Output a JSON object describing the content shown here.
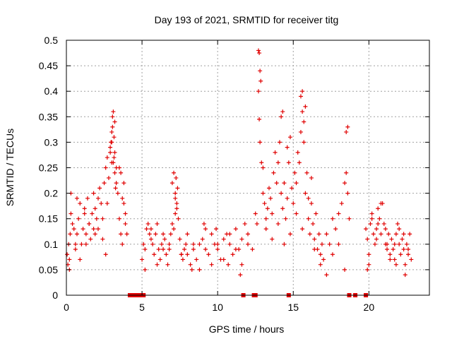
{
  "chart_data": {
    "type": "scatter",
    "title": "Day 193 of 2021, SRMTID for receiver titg",
    "xlabel": "GPS time / hours",
    "ylabel": "SRMTID / TECUs",
    "xlim": [
      0,
      24
    ],
    "ylim": [
      0,
      0.5
    ],
    "x_ticks": [
      0,
      5,
      10,
      15,
      20
    ],
    "x_tick_labels": [
      "0",
      "5",
      "10",
      "15",
      "20"
    ],
    "y_ticks": [
      0,
      0.05,
      0.1,
      0.15,
      0.2,
      0.25,
      0.3,
      0.35,
      0.4,
      0.45,
      0.5
    ],
    "y_tick_labels": [
      "0",
      "0.05",
      "0.1",
      "0.15",
      "0.2",
      "0.25",
      "0.3",
      "0.35",
      "0.4",
      "0.45",
      "0.5"
    ],
    "grid": true,
    "marker": "+",
    "colors": {
      "series": "#e00000",
      "grid": "#a0a0a0",
      "axes": "#000000"
    },
    "series": [
      {
        "x": [
          0.05,
          0.1,
          0.15,
          0.2,
          0.25,
          0.3,
          0.4,
          0.5,
          0.6,
          0.7,
          0.8,
          0.9,
          1.0,
          1.1,
          1.2,
          1.3,
          1.4,
          1.5,
          1.6,
          1.7,
          1.8,
          1.9,
          2.0,
          2.1,
          2.2,
          2.3,
          2.4,
          2.5,
          2.6,
          2.7,
          2.8,
          2.9,
          3.0,
          3.05,
          3.1,
          3.15,
          3.2,
          3.3,
          3.4,
          3.5,
          3.6,
          3.7,
          3.8,
          3.9,
          4.0,
          0.3,
          0.6,
          0.9,
          1.2,
          1.5,
          1.8,
          2.1,
          2.4,
          2.7,
          3.0,
          3.3,
          3.6,
          3.9,
          0.2,
          0.7,
          1.3,
          1.9,
          2.6,
          3.2,
          3.8,
          2.9,
          3.0,
          3.1,
          3.2,
          2.95,
          3.05,
          3.15,
          3.25,
          3.5,
          3.7
        ],
        "y": [
          0.08,
          0.06,
          0.1,
          0.07,
          0.12,
          0.16,
          0.14,
          0.13,
          0.1,
          0.12,
          0.15,
          0.18,
          0.1,
          0.13,
          0.16,
          0.12,
          0.19,
          0.14,
          0.11,
          0.16,
          0.13,
          0.17,
          0.15,
          0.19,
          0.21,
          0.18,
          0.15,
          0.22,
          0.25,
          0.27,
          0.23,
          0.28,
          0.3,
          0.33,
          0.36,
          0.31,
          0.28,
          0.25,
          0.2,
          0.15,
          0.12,
          0.1,
          0.18,
          0.14,
          0.12,
          0.2,
          0.09,
          0.07,
          0.17,
          0.14,
          0.2,
          0.13,
          0.11,
          0.18,
          0.26,
          0.22,
          0.24,
          0.16,
          0.05,
          0.19,
          0.1,
          0.12,
          0.08,
          0.34,
          0.22,
          0.29,
          0.32,
          0.26,
          0.24,
          0.3,
          0.35,
          0.27,
          0.21,
          0.25,
          0.19
        ]
      },
      {
        "x": [
          5.0,
          5.1,
          5.2,
          5.3,
          5.4,
          5.5,
          5.6,
          5.7,
          5.8,
          5.9,
          6.0,
          6.1,
          6.2,
          6.3,
          6.4,
          6.5,
          6.6,
          6.7,
          6.8,
          6.9,
          7.0,
          7.1,
          7.2,
          7.3,
          7.4,
          7.5,
          7.6,
          7.7,
          7.8,
          7.9,
          8.0,
          8.2,
          8.4,
          8.6,
          8.8,
          9.0,
          9.2,
          9.4,
          9.6,
          9.8,
          10.0,
          10.2,
          10.4,
          10.6,
          10.8,
          11.0,
          11.2,
          11.4,
          11.6,
          11.8,
          12.0,
          5.2,
          5.6,
          6.0,
          6.4,
          6.8,
          7.2,
          7.6,
          8.0,
          8.4,
          8.8,
          9.2,
          9.6,
          10.0,
          10.4,
          10.8,
          11.2,
          11.6,
          12.0,
          7.0,
          7.1,
          7.2,
          7.25,
          7.3,
          7.35,
          8.3,
          9.1,
          9.9,
          10.7,
          11.5,
          12.3,
          12.5,
          12.6
        ],
        "y": [
          0.07,
          0.1,
          0.09,
          0.13,
          0.14,
          0.12,
          0.11,
          0.1,
          0.08,
          0.12,
          0.14,
          0.09,
          0.07,
          0.1,
          0.12,
          0.11,
          0.08,
          0.06,
          0.09,
          0.12,
          0.14,
          0.13,
          0.16,
          0.18,
          0.15,
          0.11,
          0.08,
          0.07,
          0.09,
          0.1,
          0.08,
          0.06,
          0.09,
          0.07,
          0.1,
          0.11,
          0.09,
          0.08,
          0.12,
          0.1,
          0.09,
          0.07,
          0.11,
          0.12,
          0.1,
          0.08,
          0.13,
          0.09,
          0.11,
          0.14,
          0.12,
          0.05,
          0.13,
          0.06,
          0.09,
          0.1,
          0.2,
          0.08,
          0.12,
          0.1,
          0.05,
          0.13,
          0.06,
          0.1,
          0.07,
          0.12,
          0.09,
          0.06,
          0.1,
          0.22,
          0.24,
          0.19,
          0.23,
          0.17,
          0.21,
          0.05,
          0.14,
          0.13,
          0.06,
          0.04,
          0.09,
          0.16,
          0.14
        ]
      },
      {
        "x": [
          12.7,
          12.75,
          12.8,
          12.85,
          12.7,
          12.75,
          12.8,
          12.9,
          13.0,
          13.1,
          13.2,
          13.3,
          13.4,
          13.5,
          13.6,
          13.7,
          13.8,
          13.9,
          14.0,
          14.1,
          14.2,
          14.3,
          14.4,
          14.5,
          14.6,
          14.7,
          14.8,
          14.9,
          15.0,
          15.1,
          15.2,
          15.3,
          15.4,
          15.5,
          15.6,
          15.7,
          15.8,
          15.9,
          16.0,
          16.1,
          16.2,
          16.3,
          16.4,
          16.5,
          16.6,
          16.7,
          16.8,
          16.9,
          17.0,
          17.2,
          17.4,
          17.6,
          17.8,
          18.0,
          18.2,
          18.4,
          18.5,
          18.6,
          18.7,
          13.2,
          13.6,
          14.0,
          14.4,
          14.8,
          15.2,
          15.6,
          16.0,
          16.4,
          16.8,
          17.2,
          17.6,
          18.0,
          18.4,
          14.2,
          14.3,
          15.5,
          15.6,
          15.7,
          15.8,
          18.5,
          18.6,
          13.0,
          14.6,
          16.2
        ],
        "y": [
          0.48,
          0.475,
          0.44,
          0.42,
          0.4,
          0.345,
          0.3,
          0.26,
          0.2,
          0.18,
          0.15,
          0.17,
          0.21,
          0.19,
          0.16,
          0.24,
          0.28,
          0.22,
          0.26,
          0.3,
          0.2,
          0.17,
          0.22,
          0.15,
          0.19,
          0.26,
          0.31,
          0.21,
          0.18,
          0.24,
          0.22,
          0.28,
          0.26,
          0.32,
          0.36,
          0.3,
          0.2,
          0.24,
          0.15,
          0.12,
          0.18,
          0.14,
          0.11,
          0.16,
          0.09,
          0.12,
          0.08,
          0.1,
          0.07,
          0.12,
          0.1,
          0.15,
          0.13,
          0.16,
          0.18,
          0.22,
          0.24,
          0.2,
          0.15,
          0.13,
          0.11,
          0.14,
          0.1,
          0.12,
          0.16,
          0.13,
          0.19,
          0.09,
          0.06,
          0.04,
          0.08,
          0.1,
          0.05,
          0.35,
          0.36,
          0.39,
          0.4,
          0.34,
          0.37,
          0.32,
          0.33,
          0.25,
          0.29,
          0.23
        ]
      },
      {
        "x": [
          19.8,
          19.9,
          20.0,
          20.1,
          20.2,
          20.3,
          20.4,
          20.5,
          20.6,
          20.7,
          20.8,
          20.9,
          21.0,
          21.1,
          21.2,
          21.3,
          21.4,
          21.5,
          21.6,
          21.7,
          21.8,
          21.9,
          22.0,
          22.1,
          22.2,
          22.3,
          22.4,
          22.5,
          22.6,
          22.7,
          22.8,
          19.9,
          20.2,
          20.5,
          20.8,
          21.1,
          21.4,
          21.7,
          22.0,
          22.3,
          22.6,
          20.0,
          20.6,
          21.2,
          21.8,
          22.4
        ],
        "y": [
          0.13,
          0.11,
          0.06,
          0.14,
          0.15,
          0.12,
          0.1,
          0.13,
          0.17,
          0.15,
          0.12,
          0.18,
          0.14,
          0.1,
          0.09,
          0.12,
          0.08,
          0.11,
          0.09,
          0.07,
          0.12,
          0.14,
          0.1,
          0.08,
          0.11,
          0.09,
          0.06,
          0.1,
          0.08,
          0.12,
          0.07,
          0.05,
          0.16,
          0.11,
          0.18,
          0.13,
          0.07,
          0.1,
          0.13,
          0.12,
          0.09,
          0.08,
          0.14,
          0.1,
          0.06,
          0.04
        ]
      },
      {
        "x": [
          4.2,
          4.3,
          4.4,
          4.5,
          4.6,
          4.7,
          4.8,
          4.9,
          5.0,
          5.1,
          11.7,
          12.4,
          12.5,
          14.7,
          18.7,
          19.1,
          19.8
        ],
        "y": [
          0,
          0,
          0,
          0,
          0,
          0,
          0,
          0,
          0,
          0,
          0,
          0,
          0,
          0,
          0,
          0,
          0
        ],
        "style": "filled-square"
      }
    ]
  }
}
